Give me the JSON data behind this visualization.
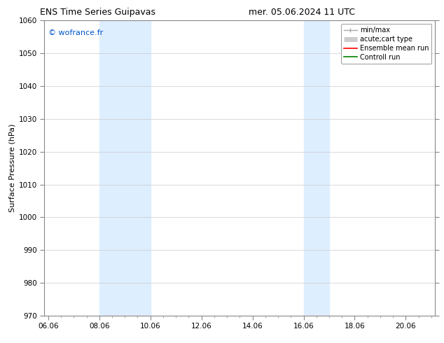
{
  "title_left": "ENS Time Series Guipavas",
  "title_right": "mer. 05.06.2024 11 UTC",
  "ylabel": "Surface Pressure (hPa)",
  "ylim": [
    970,
    1060
  ],
  "yticks": [
    970,
    980,
    990,
    1000,
    1010,
    1020,
    1030,
    1040,
    1050,
    1060
  ],
  "xlim_start": 5.85,
  "xlim_end": 21.15,
  "xtick_labels": [
    "06.06",
    "08.06",
    "10.06",
    "12.06",
    "14.06",
    "16.06",
    "18.06",
    "20.06"
  ],
  "xtick_positions": [
    6.0,
    8.0,
    10.0,
    12.0,
    14.0,
    16.0,
    18.0,
    20.0
  ],
  "shaded_bands": [
    {
      "x_start": 8.0,
      "x_end": 10.0
    },
    {
      "x_start": 16.0,
      "x_end": 17.0
    }
  ],
  "shaded_color": "#ddeeff",
  "watermark_text": "© wofrance.fr",
  "watermark_color": "#0055cc",
  "bg_color": "#ffffff",
  "plot_bg_color": "#ffffff",
  "grid_color": "#cccccc",
  "title_fontsize": 9,
  "axis_fontsize": 8,
  "tick_fontsize": 7.5,
  "legend_fontsize": 7,
  "watermark_fontsize": 8
}
